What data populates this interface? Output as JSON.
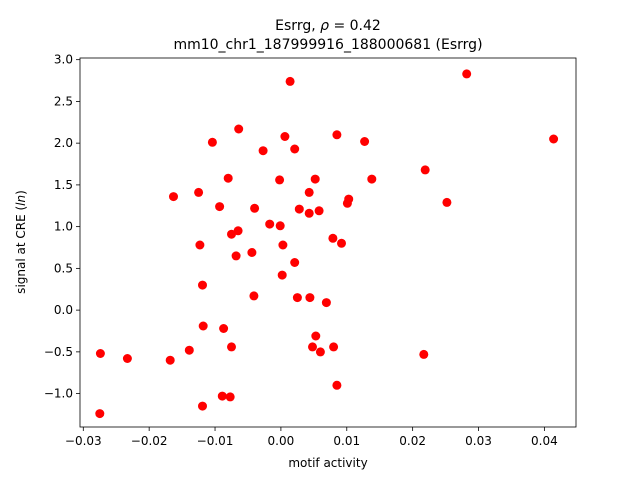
{
  "chart_data": {
    "type": "scatter",
    "title_line1_prefix": "Esrrg, ",
    "title_rho": "ρ",
    "title_line1_suffix": " = 0.42",
    "title_line2": "mm10_chr1_187999916_188000681 (Esrrg)",
    "xlabel": "motif activity",
    "ylabel_prefix": "signal at CRE (",
    "ylabel_var": "ln",
    "ylabel_suffix": ")",
    "xlim": [
      -0.0305,
      0.0448
    ],
    "ylim": [
      -1.4,
      3.02
    ],
    "xticks": [
      -0.03,
      -0.02,
      -0.01,
      0.0,
      0.01,
      0.02,
      0.03,
      0.04
    ],
    "xtick_labels": [
      "−0.03",
      "−0.02",
      "−0.01",
      "0.00",
      "0.01",
      "0.02",
      "0.03",
      "0.04"
    ],
    "yticks": [
      -1.0,
      -0.5,
      0.0,
      0.5,
      1.0,
      1.5,
      2.0,
      2.5,
      3.0
    ],
    "ytick_labels": [
      "−1.0",
      "−0.5",
      "0.0",
      "0.5",
      "1.0",
      "1.5",
      "2.0",
      "2.5",
      "3.0"
    ],
    "marker_color": "#ff0000",
    "grid": false,
    "points": [
      [
        -0.0274,
        -0.52
      ],
      [
        -0.0275,
        -1.24
      ],
      [
        -0.0233,
        -0.58
      ],
      [
        -0.0168,
        -0.6
      ],
      [
        -0.0163,
        1.36
      ],
      [
        -0.0139,
        -0.48
      ],
      [
        -0.0125,
        1.41
      ],
      [
        -0.0123,
        0.78
      ],
      [
        -0.0119,
        0.3
      ],
      [
        -0.0118,
        -0.19
      ],
      [
        -0.0119,
        -1.15
      ],
      [
        -0.0104,
        2.01
      ],
      [
        -0.0093,
        1.24
      ],
      [
        -0.0089,
        -1.03
      ],
      [
        -0.0087,
        -0.22
      ],
      [
        -0.008,
        1.58
      ],
      [
        -0.0075,
        0.91
      ],
      [
        -0.0075,
        -0.44
      ],
      [
        -0.0077,
        -1.04
      ],
      [
        -0.0068,
        0.65
      ],
      [
        -0.0065,
        0.95
      ],
      [
        -0.0064,
        2.17
      ],
      [
        -0.0044,
        0.69
      ],
      [
        -0.004,
        1.22
      ],
      [
        -0.0041,
        0.17
      ],
      [
        -0.0027,
        1.91
      ],
      [
        -0.0017,
        1.03
      ],
      [
        -0.0002,
        1.56
      ],
      [
        -0.0001,
        1.01
      ],
      [
        0.0002,
        0.42
      ],
      [
        0.0003,
        0.78
      ],
      [
        0.0006,
        2.08
      ],
      [
        0.0014,
        2.74
      ],
      [
        0.0021,
        1.93
      ],
      [
        0.0021,
        0.57
      ],
      [
        0.0025,
        0.15
      ],
      [
        0.0028,
        1.21
      ],
      [
        0.0043,
        1.41
      ],
      [
        0.0043,
        1.16
      ],
      [
        0.0044,
        0.15
      ],
      [
        0.0048,
        -0.44
      ],
      [
        0.0052,
        1.57
      ],
      [
        0.0053,
        -0.31
      ],
      [
        0.0058,
        1.19
      ],
      [
        0.006,
        -0.5
      ],
      [
        0.0069,
        0.09
      ],
      [
        0.0079,
        0.86
      ],
      [
        0.008,
        -0.44
      ],
      [
        0.0085,
        2.1
      ],
      [
        0.0085,
        -0.9
      ],
      [
        0.0092,
        0.8
      ],
      [
        0.0101,
        1.28
      ],
      [
        0.0103,
        1.33
      ],
      [
        0.0127,
        2.02
      ],
      [
        0.0138,
        1.57
      ],
      [
        0.0217,
        -0.53
      ],
      [
        0.0219,
        1.68
      ],
      [
        0.0252,
        1.29
      ],
      [
        0.0282,
        2.83
      ],
      [
        0.0414,
        2.05
      ]
    ]
  }
}
